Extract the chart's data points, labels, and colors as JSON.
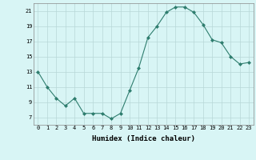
{
  "x": [
    0,
    1,
    2,
    3,
    4,
    5,
    6,
    7,
    8,
    9,
    10,
    11,
    12,
    13,
    14,
    15,
    16,
    17,
    18,
    19,
    20,
    21,
    22,
    23
  ],
  "y": [
    13,
    11,
    9.5,
    8.5,
    9.5,
    7.5,
    7.5,
    7.5,
    6.8,
    7.5,
    10.5,
    13.5,
    17.5,
    19.0,
    20.8,
    21.5,
    21.5,
    20.8,
    19.2,
    17.2,
    16.8,
    15.0,
    14.0,
    14.2
  ],
  "xlabel": "Humidex (Indice chaleur)",
  "ylim": [
    6,
    22
  ],
  "xlim": [
    -0.5,
    23.5
  ],
  "yticks": [
    7,
    9,
    11,
    13,
    15,
    17,
    19,
    21
  ],
  "xticks": [
    0,
    1,
    2,
    3,
    4,
    5,
    6,
    7,
    8,
    9,
    10,
    11,
    12,
    13,
    14,
    15,
    16,
    17,
    18,
    19,
    20,
    21,
    22,
    23
  ],
  "line_color": "#2e7d6e",
  "marker": "D",
  "marker_size": 2.0,
  "bg_color": "#d8f5f5",
  "grid_color": "#b8d8d8",
  "fig_bg": "#d8f5f5"
}
